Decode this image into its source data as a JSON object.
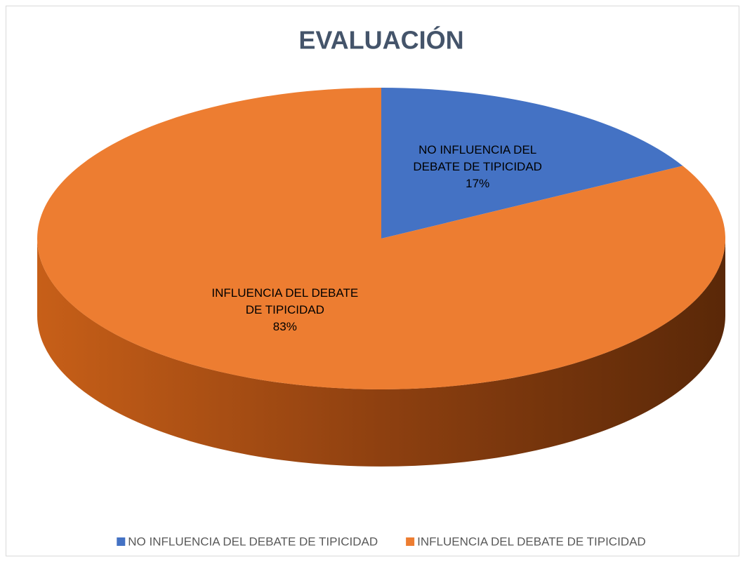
{
  "chart_data": {
    "type": "pie",
    "title": "EVALUACIÓN",
    "categories": [
      "NO INFLUENCIA DEL DEBATE DE TIPICIDAD",
      "INFLUENCIA DEL DEBATE DE TIPICIDAD"
    ],
    "values": [
      17,
      83
    ],
    "value_labels": [
      "17%",
      "83%"
    ],
    "colors": [
      "#4472c4",
      "#ed7d31"
    ],
    "legend": "bottom"
  }
}
